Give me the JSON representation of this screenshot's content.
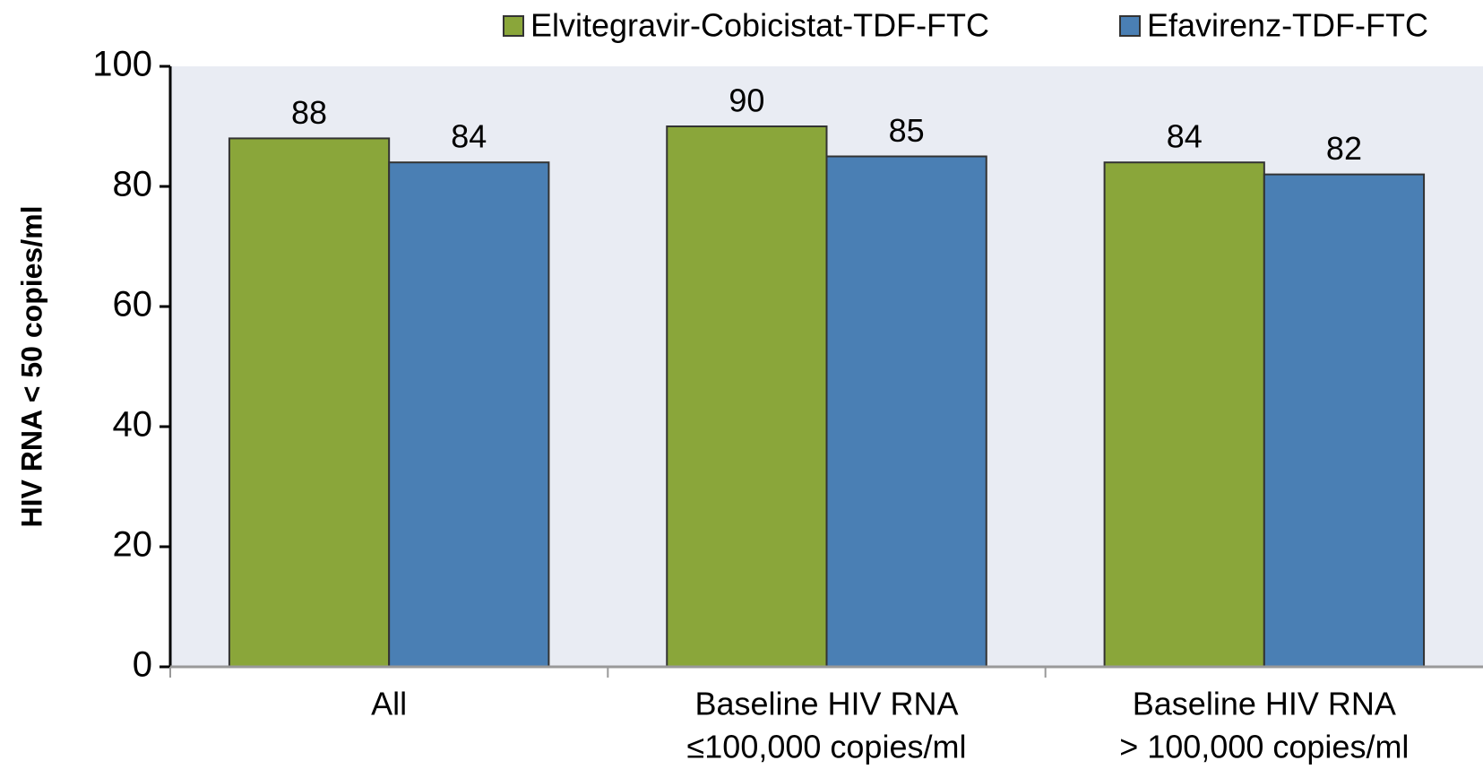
{
  "chart_data": {
    "type": "bar",
    "ylabel": "HIV RNA < 50 copies/ml",
    "categories": [
      [
        "All"
      ],
      [
        "Baseline HIV RNA",
        "≤100,000 copies/ml"
      ],
      [
        "Baseline HIV RNA",
        "> 100,000 copies/ml"
      ]
    ],
    "series": [
      {
        "name": "Elvitegravir-Cobicistat-TDF-FTC",
        "color": "#8aa63a",
        "values": [
          88,
          90,
          84
        ]
      },
      {
        "name": "Efavirenz-TDF-FTC",
        "color": "#4a7fb4",
        "values": [
          84,
          85,
          82
        ]
      }
    ],
    "ylim": [
      0,
      100
    ],
    "yticks": [
      0,
      20,
      40,
      60,
      80,
      100
    ],
    "legend": "top-right"
  }
}
